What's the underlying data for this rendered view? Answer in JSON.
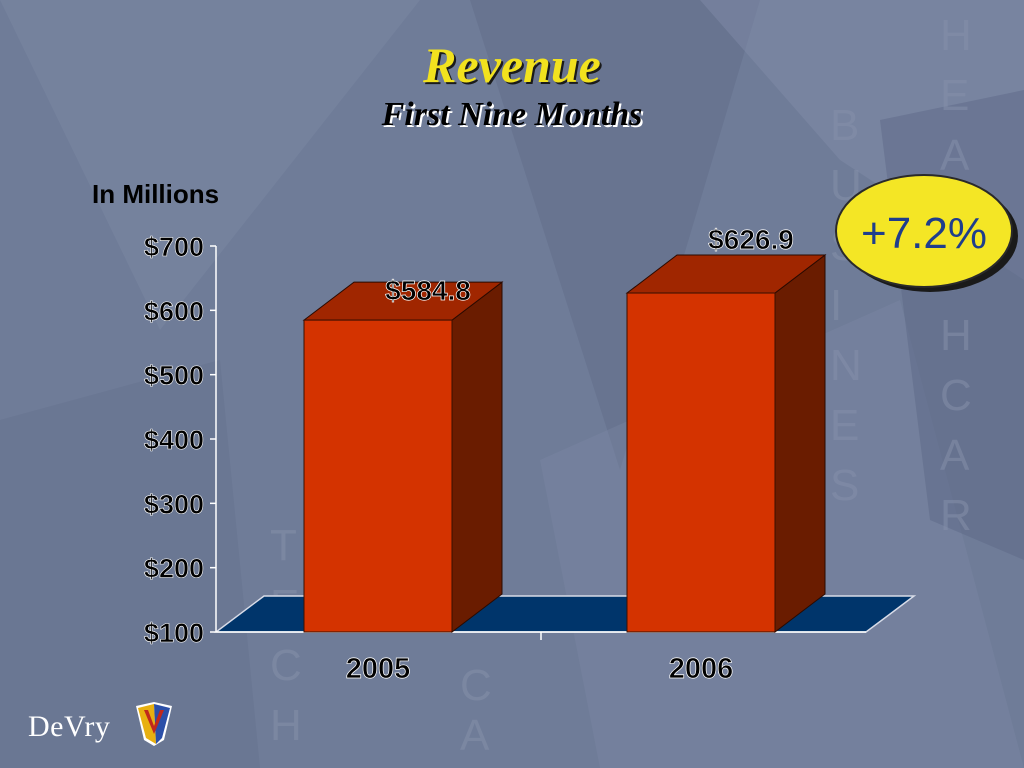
{
  "slide": {
    "title": "Revenue",
    "subtitle": "First Nine Months",
    "brand": "DeVry",
    "growth_badge": "+7.2%"
  },
  "colors": {
    "background": "#6f7c98",
    "title": "#f2e21e",
    "bar_front": "#d43300",
    "bar_side": "#6a1c00",
    "bar_top": "#a02600",
    "floor": "#00356b",
    "badge_fill": "#f4e625",
    "badge_text": "#1f3e8c"
  },
  "chart_data": {
    "type": "bar",
    "ylabel": "In Millions",
    "categories": [
      "2005",
      "2006"
    ],
    "values": [
      584.8,
      626.9
    ],
    "data_labels": [
      "$584.8",
      "$626.9"
    ],
    "ylim": [
      100,
      700
    ],
    "yticks": [
      100,
      200,
      300,
      400,
      500,
      600,
      700
    ],
    "ytick_labels": [
      "$100",
      "$200",
      "$300",
      "$400",
      "$500",
      "$600",
      "$700"
    ],
    "grid": false,
    "style": "3d"
  }
}
